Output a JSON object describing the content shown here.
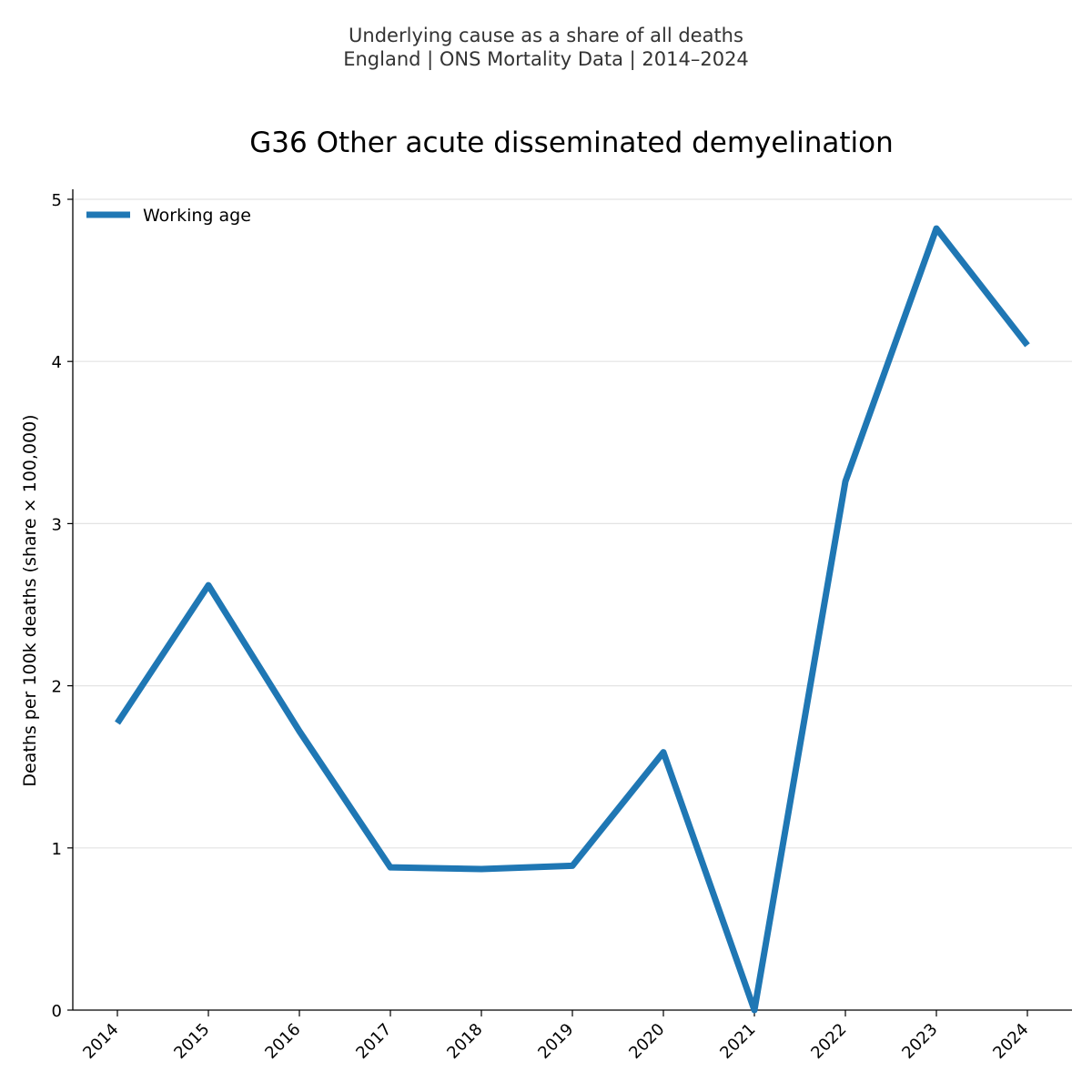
{
  "header": {
    "line1": "Underlying cause as a share of all deaths",
    "line2": "England | ONS Mortality Data | 2014–2024"
  },
  "chart_data": {
    "type": "line",
    "title": "G36 Other acute disseminated demyelination",
    "xlabel": "",
    "ylabel": "Deaths per 100k deaths (share × 100,000)",
    "categories": [
      "2014",
      "2015",
      "2016",
      "2017",
      "2018",
      "2019",
      "2020",
      "2021",
      "2022",
      "2023",
      "2024"
    ],
    "series": [
      {
        "name": "Working age",
        "color": "#1f77b4",
        "values": [
          1.77,
          2.62,
          1.72,
          0.88,
          0.87,
          0.89,
          1.59,
          0.0,
          3.26,
          4.82,
          4.1
        ]
      }
    ],
    "ylim": [
      0,
      5
    ],
    "yticks": [
      "0",
      "1",
      "2",
      "3",
      "4",
      "5"
    ],
    "grid": true,
    "legend": "top-left"
  }
}
